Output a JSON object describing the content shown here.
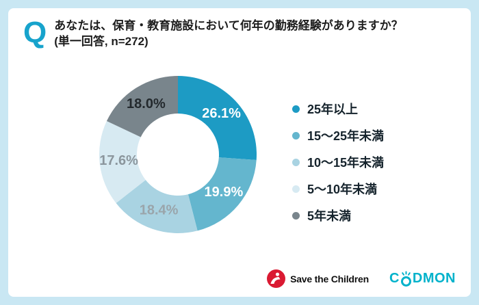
{
  "question": {
    "icon": "Q",
    "line1": "あなたは、保育・教育施設において何年の勤務経験がありますか？",
    "line2": "(単一回答, n=272)"
  },
  "chart_data": {
    "type": "pie",
    "subtype": "donut",
    "title": "あなたは、保育・教育施設において何年の勤務経験がありますか？",
    "subtitle": "(単一回答, n=272)",
    "n": 272,
    "labels": [
      "25年以上",
      "15～25年未満",
      "10～15年未満",
      "5～10年未満",
      "5年未満"
    ],
    "values": [
      26.1,
      19.9,
      18.4,
      17.6,
      18.0
    ],
    "unit": "%",
    "colors": [
      "#1d9bc4",
      "#64b6ce",
      "#a9d3e2",
      "#d7eaf2",
      "#79858c"
    ],
    "slice_label_colors": [
      "#ffffff",
      "#ffffff",
      "#9aa5ab",
      "#8b969d",
      "#23292d"
    ],
    "start_angle": "top",
    "direction": "clockwise",
    "legend_position": "right",
    "inner_radius_ratio": 0.52
  },
  "style": {
    "accent_teal": "#17a3cc",
    "background_blue": "#c9e7f3",
    "legend_text_color": "#15232c"
  },
  "footer": {
    "save_the_children_label": "Save the Children",
    "stc_red": "#da1a32",
    "codmon_prefix": "C",
    "codmon_suffix": "DMON",
    "codmon_teal": "#00b2cb"
  }
}
